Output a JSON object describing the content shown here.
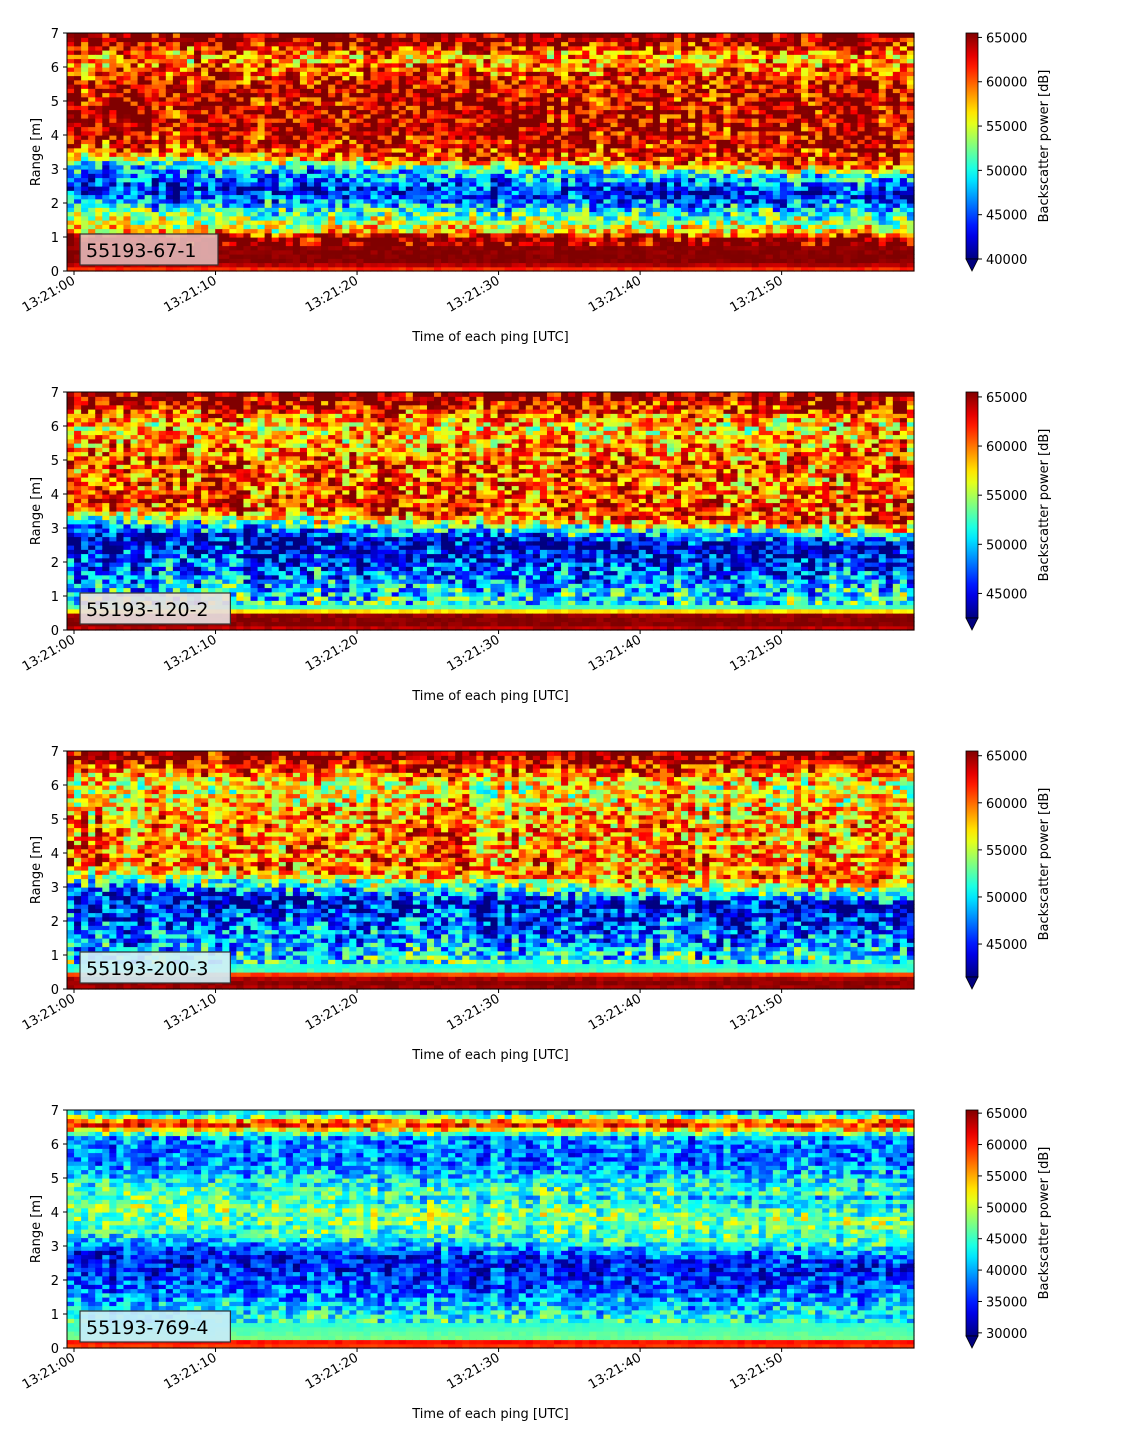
{
  "colormap": "jet",
  "colors": {
    "under": "#00007f",
    "axes": "#000000",
    "label_box_edge": "#333333"
  },
  "chart_data": [
    {
      "type": "heatmap",
      "panel_label": "55193-67-1",
      "label_box_color": "#e2b3b3",
      "xlabel": "Time of each ping [UTC]",
      "ylabel": "Range [m]",
      "xlim": [
        "13:21:00",
        "13:21:59"
      ],
      "ylim": [
        0,
        7
      ],
      "x_ticks": [
        "13:21:00",
        "13:21:10",
        "13:21:20",
        "13:21:30",
        "13:21:40",
        "13:21:50"
      ],
      "y_ticks": [
        "0",
        "1",
        "2",
        "3",
        "4",
        "5",
        "6",
        "7"
      ],
      "colorbar": {
        "label": "Backscatter power [dB]",
        "range": [
          40000,
          65500
        ],
        "ticks": [
          "40000",
          "45000",
          "50000",
          "55000",
          "60000",
          "65000"
        ],
        "extend": "min"
      },
      "profile": [
        {
          "range_m": 0.0,
          "value": 60000
        },
        {
          "range_m": 0.25,
          "value": 65500
        },
        {
          "range_m": 1.0,
          "value": 65000
        },
        {
          "range_m": 1.2,
          "value": 57000
        },
        {
          "range_m": 1.8,
          "value": 51000
        },
        {
          "range_m": 2.5,
          "value": 43000
        },
        {
          "range_m": 3.2,
          "value": 49000
        },
        {
          "range_m": 3.6,
          "value": 61000
        },
        {
          "range_m": 4.5,
          "value": 64000
        },
        {
          "range_m": 5.5,
          "value": 63000
        },
        {
          "range_m": 6.3,
          "value": 58000
        },
        {
          "range_m": 6.8,
          "value": 65000
        },
        {
          "range_m": 7.0,
          "value": 65500
        }
      ],
      "upper_boundary_m": {
        "start": 3.6,
        "end": 2.7
      }
    },
    {
      "type": "heatmap",
      "panel_label": "55193-120-2",
      "label_box_color": "#e8dede",
      "xlabel": "Time of each ping [UTC]",
      "ylabel": "Range [m]",
      "xlim": [
        "13:21:00",
        "13:21:59"
      ],
      "ylim": [
        0,
        7
      ],
      "x_ticks": [
        "13:21:00",
        "13:21:10",
        "13:21:20",
        "13:21:30",
        "13:21:40",
        "13:21:50"
      ],
      "y_ticks": [
        "0",
        "1",
        "2",
        "3",
        "4",
        "5",
        "6",
        "7"
      ],
      "colorbar": {
        "label": "Backscatter power [dB]",
        "range": [
          42500,
          65500
        ],
        "ticks": [
          "45000",
          "50000",
          "55000",
          "60000",
          "65000"
        ],
        "extend": "min"
      },
      "profile": [
        {
          "range_m": 0.0,
          "value": 63000
        },
        {
          "range_m": 0.15,
          "value": 65500
        },
        {
          "range_m": 0.5,
          "value": 65000
        },
        {
          "range_m": 0.6,
          "value": 53000
        },
        {
          "range_m": 1.5,
          "value": 49000
        },
        {
          "range_m": 2.8,
          "value": 44000
        },
        {
          "range_m": 3.3,
          "value": 53000
        },
        {
          "range_m": 3.7,
          "value": 62000
        },
        {
          "range_m": 5.0,
          "value": 61000
        },
        {
          "range_m": 6.0,
          "value": 58000
        },
        {
          "range_m": 6.8,
          "value": 65000
        },
        {
          "range_m": 7.0,
          "value": 65500
        }
      ],
      "upper_boundary_m": {
        "start": 3.4,
        "end": 2.5
      }
    },
    {
      "type": "heatmap",
      "panel_label": "55193-200-3",
      "label_box_color": "#d2f0f6",
      "xlabel": "Time of each ping [UTC]",
      "ylabel": "Range [m]",
      "xlim": [
        "13:21:00",
        "13:21:59"
      ],
      "ylim": [
        0,
        7
      ],
      "x_ticks": [
        "13:21:00",
        "13:21:10",
        "13:21:20",
        "13:21:30",
        "13:21:40",
        "13:21:50"
      ],
      "y_ticks": [
        "0",
        "1",
        "2",
        "3",
        "4",
        "5",
        "6",
        "7"
      ],
      "colorbar": {
        "label": "Backscatter power [dB]",
        "range": [
          41500,
          65500
        ],
        "ticks": [
          "45000",
          "50000",
          "55000",
          "60000",
          "65000"
        ],
        "extend": "min"
      },
      "profile": [
        {
          "range_m": 0.0,
          "value": 64000
        },
        {
          "range_m": 0.15,
          "value": 65500
        },
        {
          "range_m": 0.4,
          "value": 64000
        },
        {
          "range_m": 0.55,
          "value": 52000
        },
        {
          "range_m": 1.5,
          "value": 48000
        },
        {
          "range_m": 2.8,
          "value": 44000
        },
        {
          "range_m": 3.3,
          "value": 53000
        },
        {
          "range_m": 3.7,
          "value": 60000
        },
        {
          "range_m": 5.0,
          "value": 59000
        },
        {
          "range_m": 6.0,
          "value": 56000
        },
        {
          "range_m": 6.8,
          "value": 65000
        },
        {
          "range_m": 7.0,
          "value": 65500
        }
      ],
      "upper_boundary_m": {
        "start": 3.4,
        "end": 2.5
      }
    },
    {
      "type": "heatmap",
      "panel_label": "55193-769-4",
      "label_box_color": "#c8ecf8",
      "xlabel": "Time of each ping [UTC]",
      "ylabel": "Range [m]",
      "xlim": [
        "13:21:00",
        "13:21:59"
      ],
      "ylim": [
        0,
        7
      ],
      "x_ticks": [
        "13:21:00",
        "13:21:10",
        "13:21:20",
        "13:21:30",
        "13:21:40",
        "13:21:50"
      ],
      "y_ticks": [
        "0",
        "1",
        "2",
        "3",
        "4",
        "5",
        "6",
        "7"
      ],
      "colorbar": {
        "label": "Backscatter power [dB]",
        "range": [
          29500,
          65500
        ],
        "ticks": [
          "30000",
          "35000",
          "40000",
          "45000",
          "50000",
          "55000",
          "60000",
          "65000"
        ],
        "extend": "min"
      },
      "profile": [
        {
          "range_m": 0.0,
          "value": 55000
        },
        {
          "range_m": 0.15,
          "value": 65000
        },
        {
          "range_m": 0.3,
          "value": 47000
        },
        {
          "range_m": 1.0,
          "value": 43000
        },
        {
          "range_m": 2.0,
          "value": 36000
        },
        {
          "range_m": 2.8,
          "value": 34000
        },
        {
          "range_m": 3.5,
          "value": 45000
        },
        {
          "range_m": 4.3,
          "value": 48000
        },
        {
          "range_m": 5.5,
          "value": 38000
        },
        {
          "range_m": 6.2,
          "value": 39000
        },
        {
          "range_m": 6.6,
          "value": 62000
        },
        {
          "range_m": 6.9,
          "value": 42000
        },
        {
          "range_m": 7.0,
          "value": 40000
        }
      ],
      "upper_boundary_m": {
        "start": 3.3,
        "end": 2.5
      }
    }
  ]
}
